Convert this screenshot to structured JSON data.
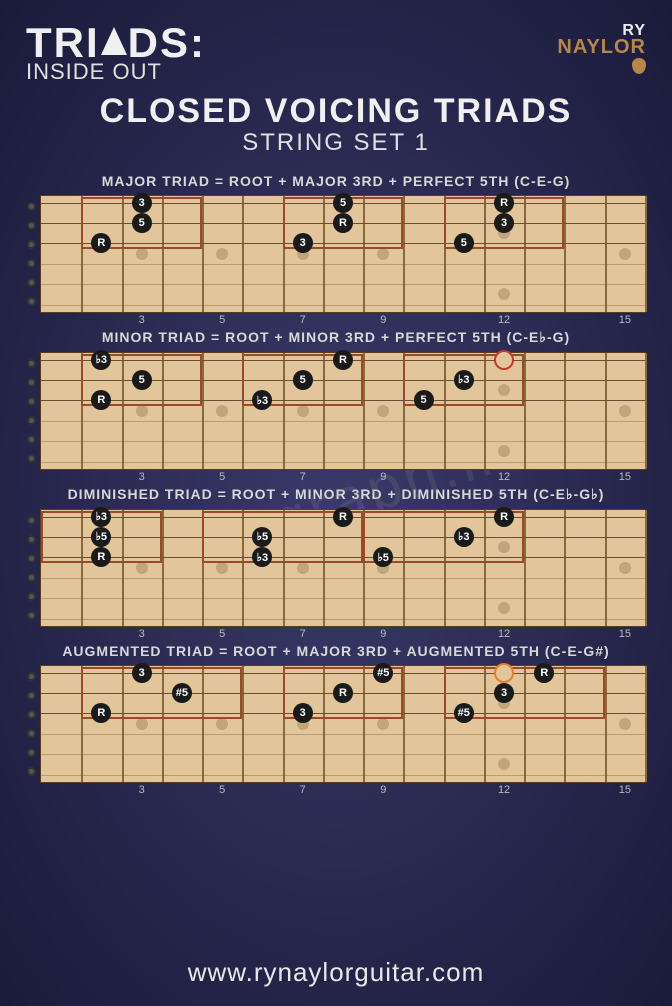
{
  "watermark": "paragraph.im",
  "brand": {
    "main_prefix": "TRI",
    "main_suffix": "DS:",
    "sub": "INSIDE OUT"
  },
  "logo": {
    "line1": "RY",
    "line2": "NAYLOR"
  },
  "title": "CLOSED VOICING TRIADS",
  "subtitle": "STRING SET 1",
  "footer_url": "www.rynaylorguitar.com",
  "fretboard": {
    "background_color": "#e2c59a",
    "fret_color": "#8a6a3a",
    "string_color": "#6a5030",
    "num_frets": 15,
    "num_strings": 6,
    "active_strings": [
      0,
      1,
      2
    ],
    "inlay_frets": [
      3,
      5,
      7,
      9,
      12,
      15
    ],
    "dot_size": 20,
    "dot_fill": "#1a1a1a",
    "dot_text": "#ffffff",
    "hollow_border_red": "#c0392b",
    "hollow_border_orange": "#e67e22"
  },
  "sections": [
    {
      "label": "MAJOR TRIAD = ROOT + MAJOR 3RD + PERFECT 5TH (C-E-G)",
      "box_color": "#9a4a2a",
      "shapes": [
        {
          "box_frets": [
            2,
            4
          ],
          "notes": [
            {
              "string": 2,
              "fret": 2,
              "type": "filled",
              "label": "R"
            },
            {
              "string": 1,
              "fret": 3,
              "type": "filled",
              "label": "5"
            },
            {
              "string": 0,
              "fret": 3,
              "type": "filled",
              "label": "3"
            }
          ]
        },
        {
          "box_frets": [
            7,
            9
          ],
          "notes": [
            {
              "string": 2,
              "fret": 7,
              "type": "filled",
              "label": "3"
            },
            {
              "string": 1,
              "fret": 8,
              "type": "filled",
              "label": "R"
            },
            {
              "string": 0,
              "fret": 8,
              "type": "filled",
              "label": "5"
            }
          ]
        },
        {
          "box_frets": [
            11,
            13
          ],
          "notes": [
            {
              "string": 2,
              "fret": 11,
              "type": "filled",
              "label": "5"
            },
            {
              "string": 1,
              "fret": 12,
              "type": "filled",
              "label": "3"
            },
            {
              "string": 0,
              "fret": 12,
              "type": "filled",
              "label": "R"
            }
          ]
        }
      ]
    },
    {
      "label": "MINOR TRIAD = ROOT + MINOR 3RD + PERFECT 5TH (C-E♭-G)",
      "box_color": "#9a4a2a",
      "shapes": [
        {
          "box_frets": [
            2,
            4
          ],
          "notes": [
            {
              "string": 2,
              "fret": 2,
              "type": "filled",
              "label": "R"
            },
            {
              "string": 1,
              "fret": 3,
              "type": "filled",
              "label": "5"
            },
            {
              "string": 0,
              "fret": 2,
              "type": "filled",
              "label": "♭3"
            }
          ]
        },
        {
          "box_frets": [
            6,
            8
          ],
          "notes": [
            {
              "string": 2,
              "fret": 6,
              "type": "filled",
              "label": "♭3"
            },
            {
              "string": 1,
              "fret": 7,
              "type": "filled",
              "label": "5"
            },
            {
              "string": 0,
              "fret": 8,
              "type": "filled",
              "label": "R"
            }
          ]
        },
        {
          "box_frets": [
            10,
            12
          ],
          "notes": [
            {
              "string": 2,
              "fret": 10,
              "type": "filled",
              "label": "5"
            },
            {
              "string": 1,
              "fret": 11,
              "type": "filled",
              "label": "♭3"
            },
            {
              "string": 0,
              "fret": 12,
              "type": "hollow",
              "border": "#c0392b",
              "label": ""
            }
          ]
        }
      ]
    },
    {
      "label": "DIMINISHED TRIAD = ROOT + MINOR 3RD + DIMINISHED 5TH (C-E♭-G♭)",
      "box_color": "#9a4a2a",
      "shapes": [
        {
          "box_frets": [
            1,
            3
          ],
          "notes": [
            {
              "string": 2,
              "fret": 2,
              "type": "filled",
              "label": "R"
            },
            {
              "string": 1,
              "fret": 2,
              "type": "filled",
              "label": "♭5"
            },
            {
              "string": 0,
              "fret": 2,
              "type": "filled",
              "label": "♭3"
            }
          ]
        },
        {
          "box_frets": [
            5,
            8
          ],
          "notes": [
            {
              "string": 2,
              "fret": 6,
              "type": "filled",
              "label": "♭3"
            },
            {
              "string": 1,
              "fret": 6,
              "type": "filled",
              "label": "♭5"
            },
            {
              "string": 0,
              "fret": 8,
              "type": "filled",
              "label": "R"
            }
          ]
        },
        {
          "box_frets": [
            9,
            12
          ],
          "notes": [
            {
              "string": 2,
              "fret": 9,
              "type": "filled",
              "label": "♭5"
            },
            {
              "string": 1,
              "fret": 11,
              "type": "filled",
              "label": "♭3"
            },
            {
              "string": 0,
              "fret": 12,
              "type": "filled",
              "label": "R"
            }
          ]
        }
      ]
    },
    {
      "label": "AUGMENTED TRIAD = ROOT + MAJOR 3RD + AUGMENTED 5TH (C-E-G#)",
      "box_color": "#9a4a2a",
      "shapes": [
        {
          "box_frets": [
            2,
            5
          ],
          "notes": [
            {
              "string": 2,
              "fret": 2,
              "type": "filled",
              "label": "R"
            },
            {
              "string": 1,
              "fret": 4,
              "type": "filled",
              "label": "#5"
            },
            {
              "string": 0,
              "fret": 3,
              "type": "filled",
              "label": "3"
            }
          ]
        },
        {
          "box_frets": [
            7,
            9
          ],
          "notes": [
            {
              "string": 2,
              "fret": 7,
              "type": "filled",
              "label": "3"
            },
            {
              "string": 1,
              "fret": 8,
              "type": "filled",
              "label": "R"
            },
            {
              "string": 0,
              "fret": 9,
              "type": "filled",
              "label": "#5"
            }
          ]
        },
        {
          "box_frets": [
            11,
            14
          ],
          "notes": [
            {
              "string": 2,
              "fret": 11,
              "type": "filled",
              "label": "#5"
            },
            {
              "string": 1,
              "fret": 12,
              "type": "filled",
              "label": "3"
            },
            {
              "string": 0,
              "fret": 12,
              "type": "hollow",
              "border": "#e67e22",
              "label": ""
            },
            {
              "string": 0,
              "fret": 13,
              "type": "filled",
              "label": "R"
            }
          ]
        }
      ]
    }
  ]
}
